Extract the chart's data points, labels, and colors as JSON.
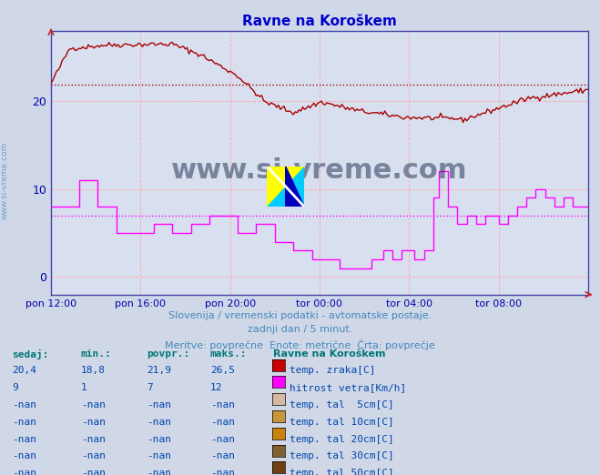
{
  "title": "Ravne na Koroškem",
  "background_color": "#d0d8e8",
  "plot_bg_color": "#d8e0f0",
  "xlabel_color": "#0000aa",
  "title_color": "#0000cc",
  "subtitle_lines": [
    "Slovenija / vremenski podatki - avtomatske postaje.",
    "zadnji dan / 5 minut.",
    "Meritve: povprečne  Enote: metrične  Črta: povprečje"
  ],
  "subtitle_color": "#4488bb",
  "xtick_labels": [
    "pon 12:00",
    "pon 16:00",
    "pon 20:00",
    "tor 00:00",
    "tor 04:00",
    "tor 08:00"
  ],
  "xtick_positions": [
    0,
    48,
    96,
    144,
    192,
    240
  ],
  "ytick_values": [
    0,
    10,
    20
  ],
  "ylim": [
    -2,
    28
  ],
  "xlim": [
    0,
    288
  ],
  "n_points": 289,
  "temp_color": "#aa0000",
  "wind_color": "#ff00ff",
  "avg_temp": 21.9,
  "avg_wind": 7,
  "legend_station": "Ravne na Koroškem",
  "legend_items": [
    {
      "label": "temp. zraka[C]",
      "color": "#cc0000",
      "sedaj": "20,4",
      "min": "18,8",
      "povpr": "21,9",
      "maks": "26,5"
    },
    {
      "label": "hitrost vetra[Km/h]",
      "color": "#ff00ff",
      "sedaj": "9",
      "min": "1",
      "povpr": "7",
      "maks": "12"
    },
    {
      "label": "temp. tal  5cm[C]",
      "color": "#d4b8a0",
      "sedaj": "-nan",
      "min": "-nan",
      "povpr": "-nan",
      "maks": "-nan"
    },
    {
      "label": "temp. tal 10cm[C]",
      "color": "#c8943c",
      "sedaj": "-nan",
      "min": "-nan",
      "povpr": "-nan",
      "maks": "-nan"
    },
    {
      "label": "temp. tal 20cm[C]",
      "color": "#c8840a",
      "sedaj": "-nan",
      "min": "-nan",
      "povpr": "-nan",
      "maks": "-nan"
    },
    {
      "label": "temp. tal 30cm[C]",
      "color": "#806030",
      "sedaj": "-nan",
      "min": "-nan",
      "povpr": "-nan",
      "maks": "-nan"
    },
    {
      "label": "temp. tal 50cm[C]",
      "color": "#704010",
      "sedaj": "-nan",
      "min": "-nan",
      "povpr": "-nan",
      "maks": "-nan"
    }
  ],
  "watermark_text": "www.si-vreme.com",
  "watermark_color": "#1a2a4a"
}
